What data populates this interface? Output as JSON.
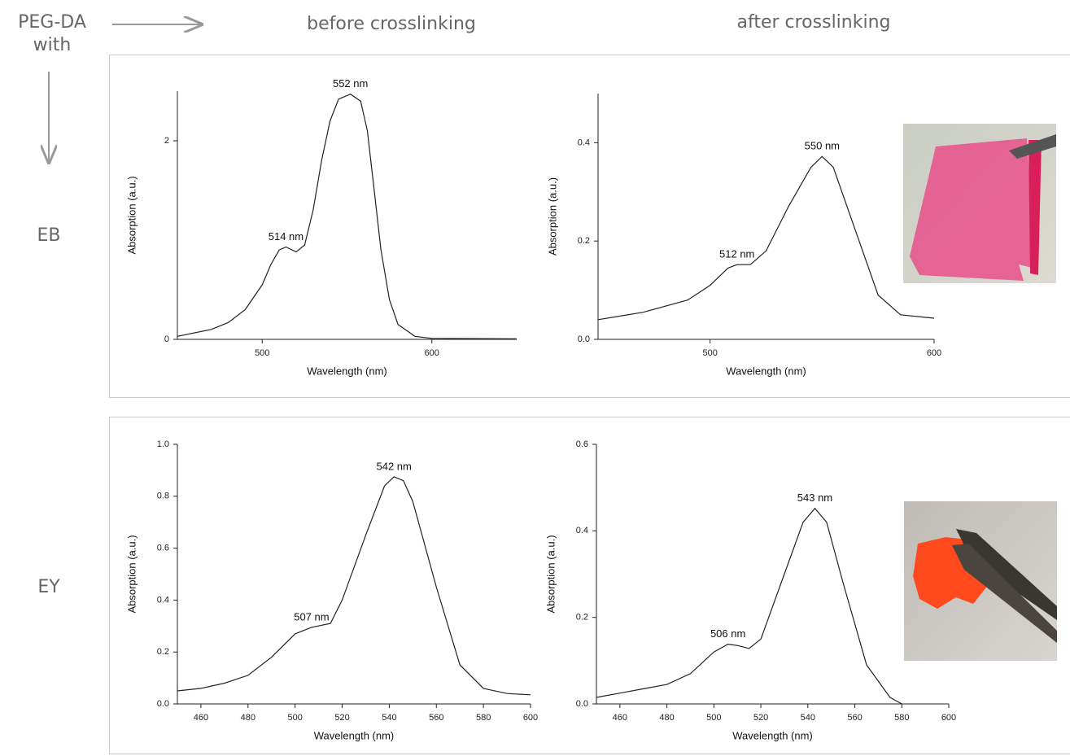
{
  "labels": {
    "corner_line1": "PEG-DA",
    "corner_line2": "with",
    "col_before": "before crosslinking",
    "col_after": "after crosslinking",
    "row_eb": "EB",
    "row_ey": "EY"
  },
  "chart_data": [
    {
      "type": "line",
      "xlabel": "Wavelength (nm)",
      "ylabel": "Absorption (a.u.)",
      "xlim": [
        450,
        650
      ],
      "xticks": [
        500,
        600
      ],
      "ylim": [
        0,
        2.5
      ],
      "yticks": [
        0,
        2
      ],
      "color": "#222222",
      "x": [
        450,
        470,
        480,
        490,
        500,
        505,
        510,
        514,
        520,
        525,
        530,
        535,
        540,
        545,
        552,
        558,
        562,
        566,
        570,
        575,
        580,
        590,
        600,
        650
      ],
      "values": [
        0.03,
        0.1,
        0.17,
        0.3,
        0.55,
        0.75,
        0.9,
        0.93,
        0.88,
        0.95,
        1.3,
        1.8,
        2.2,
        2.42,
        2.47,
        2.4,
        2.1,
        1.5,
        0.9,
        0.4,
        0.15,
        0.03,
        0.01,
        0.005
      ],
      "annotations": [
        {
          "text": "514 nm",
          "x": 514,
          "y": 0.93
        },
        {
          "text": "552 nm",
          "x": 552,
          "y": 2.47
        }
      ]
    },
    {
      "type": "line",
      "xlabel": "Wavelength (nm)",
      "ylabel": "Absorption (a.u.)",
      "xlim": [
        450,
        600
      ],
      "xticks": [
        500,
        600
      ],
      "ylim": [
        0,
        0.5
      ],
      "yticks": [
        {
          "value": 0,
          "label": "0.0"
        },
        0.2,
        0.4
      ],
      "color": "#222222",
      "x": [
        450,
        470,
        490,
        500,
        508,
        512,
        518,
        525,
        535,
        545,
        550,
        555,
        565,
        575,
        585,
        600
      ],
      "values": [
        0.04,
        0.055,
        0.08,
        0.11,
        0.145,
        0.152,
        0.152,
        0.18,
        0.27,
        0.35,
        0.372,
        0.35,
        0.22,
        0.09,
        0.05,
        0.043
      ],
      "annotations": [
        {
          "text": "512 nm",
          "x": 512,
          "y": 0.152
        },
        {
          "text": "550 nm",
          "x": 550,
          "y": 0.372
        }
      ]
    },
    {
      "type": "line",
      "xlabel": "Wavelength (nm)",
      "ylabel": "Absorption (a.u.)",
      "xlim": [
        450,
        600
      ],
      "xticks": [
        460,
        480,
        500,
        520,
        540,
        560,
        580,
        600
      ],
      "ylim": [
        0,
        1
      ],
      "yticks": [
        {
          "value": 0,
          "label": "0.0"
        },
        0.2,
        0.4,
        0.6,
        0.8,
        {
          "value": 1,
          "label": "1.0"
        }
      ],
      "color": "#222222",
      "x": [
        450,
        460,
        470,
        480,
        490,
        500,
        507,
        515,
        520,
        530,
        538,
        542,
        546,
        550,
        560,
        570,
        580,
        590,
        600
      ],
      "values": [
        0.05,
        0.06,
        0.08,
        0.11,
        0.18,
        0.27,
        0.295,
        0.31,
        0.4,
        0.65,
        0.84,
        0.875,
        0.86,
        0.78,
        0.45,
        0.15,
        0.06,
        0.04,
        0.035
      ],
      "annotations": [
        {
          "text": "507 nm",
          "x": 507,
          "y": 0.295
        },
        {
          "text": "542 nm",
          "x": 542,
          "y": 0.875
        }
      ]
    },
    {
      "type": "line",
      "xlabel": "Wavelength (nm)",
      "ylabel": "Absorption (a.u.)",
      "xlim": [
        450,
        600
      ],
      "xticks": [
        460,
        480,
        500,
        520,
        540,
        560,
        580,
        600
      ],
      "ylim": [
        0,
        0.6
      ],
      "yticks": [
        {
          "value": 0,
          "label": "0.0"
        },
        0.2,
        0.4,
        0.6
      ],
      "color": "#222222",
      "x": [
        450,
        460,
        470,
        480,
        490,
        500,
        506,
        510,
        515,
        520,
        530,
        538,
        543,
        548,
        555,
        565,
        575,
        580
      ],
      "values": [
        0.015,
        0.025,
        0.035,
        0.045,
        0.07,
        0.12,
        0.138,
        0.135,
        0.128,
        0.15,
        0.3,
        0.42,
        0.452,
        0.42,
        0.28,
        0.09,
        0.015,
        0.0
      ],
      "annotations": [
        {
          "text": "506 nm",
          "x": 506,
          "y": 0.138
        },
        {
          "text": "543 nm",
          "x": 543,
          "y": 0.452
        }
      ]
    }
  ]
}
